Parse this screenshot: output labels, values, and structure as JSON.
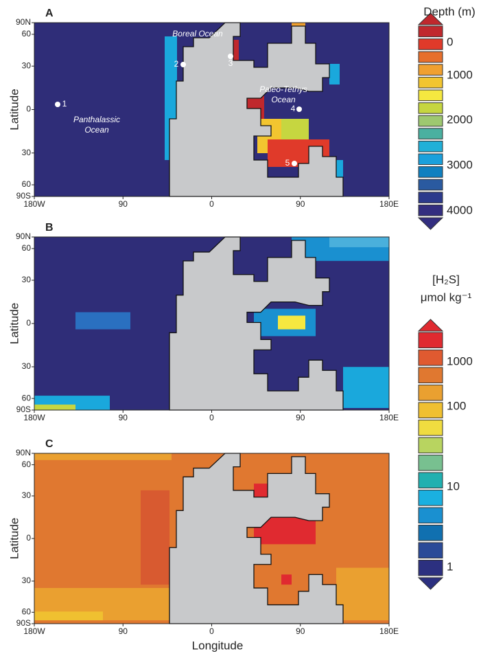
{
  "panels": [
    {
      "letter": "A"
    },
    {
      "letter": "B"
    },
    {
      "letter": "C"
    }
  ],
  "axes": {
    "y_label": "Latitude",
    "x_label": "Longitude",
    "lat_ticks": [
      {
        "value": 90,
        "label": "90N"
      },
      {
        "value": 60,
        "label": "60"
      },
      {
        "value": 30,
        "label": "30"
      },
      {
        "value": 0,
        "label": "0"
      },
      {
        "value": -30,
        "label": "30"
      },
      {
        "value": -60,
        "label": "60"
      },
      {
        "value": -90,
        "label": "90S"
      }
    ],
    "lon_ticks": [
      {
        "value": -180,
        "label": "180W"
      },
      {
        "value": -90,
        "label": "90"
      },
      {
        "value": 0,
        "label": "0"
      },
      {
        "value": 90,
        "label": "90"
      },
      {
        "value": 180,
        "label": "180E"
      }
    ]
  },
  "annotations": {
    "boreal": "Boreal Ocean",
    "paleo_tethys": [
      "Paleo-Tethys",
      "Ocean"
    ],
    "panthalassic": [
      "Panthalassic",
      "Ocean"
    ],
    "sites": [
      "1",
      "2",
      "3",
      "4",
      "5"
    ]
  },
  "depth_scale": {
    "title": "Depth (m)",
    "labels": [
      "0",
      "1000",
      "2000",
      "3000",
      "4000"
    ]
  },
  "h2s_scale": {
    "title": "[H₂S]",
    "unit": "μmol kg⁻¹",
    "labels": [
      "1000",
      "100",
      "10",
      "1"
    ]
  }
}
